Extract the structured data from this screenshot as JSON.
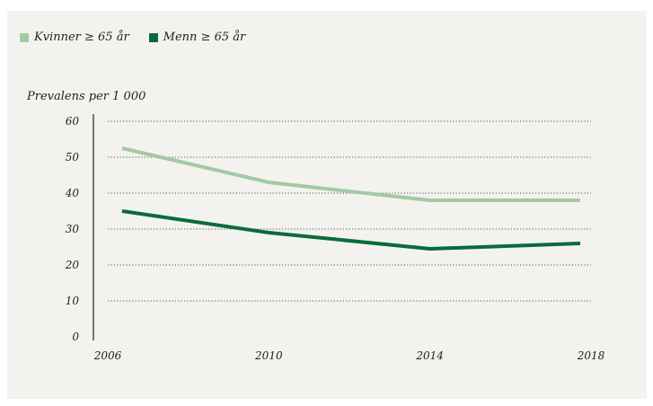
{
  "chart_data": {
    "type": "line",
    "title": "",
    "ylabel": "Prevalens per 1 000",
    "xlabel": "",
    "x": [
      2006,
      2010,
      2014,
      2018
    ],
    "x_tick_labels": [
      "2006",
      "2010",
      "2014",
      "2018"
    ],
    "y_ticks": [
      0,
      10,
      20,
      30,
      40,
      50,
      60
    ],
    "y_tick_labels": [
      "0",
      "10",
      "20",
      "30",
      "40",
      "50",
      "60"
    ],
    "ylim": [
      0,
      60
    ],
    "grid": "horizontal-dotted",
    "legend_position": "top-left",
    "series": [
      {
        "name": "Kvinner ≥ 65 år",
        "color": "#a3c9a6",
        "values": [
          52.5,
          43,
          38,
          38
        ]
      },
      {
        "name": "Menn ≥ 65 år",
        "color": "#0a6b3a",
        "values": [
          35,
          29,
          24.5,
          26
        ]
      }
    ]
  }
}
